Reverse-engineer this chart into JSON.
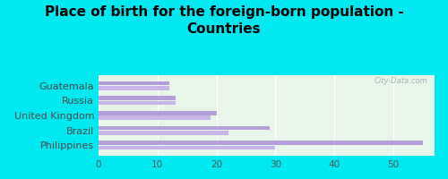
{
  "title": "Place of birth for the foreign-born population -\nCountries",
  "categories": [
    "Guatemala",
    "Russia",
    "United Kingdom",
    "Brazil",
    "Philippines"
  ],
  "values1": [
    55,
    29,
    20,
    13,
    12
  ],
  "values2": [
    30,
    22,
    19,
    13,
    12
  ],
  "bar_color1": "#b39ddb",
  "bar_color2": "#c8b4e8",
  "background_outer": "#00e8f0",
  "background_plot": "#e8f5e9",
  "xlim": [
    0,
    57
  ],
  "xticks": [
    0,
    10,
    20,
    30,
    40,
    50
  ],
  "title_fontsize": 11,
  "label_fontsize": 8,
  "tick_fontsize": 7.5
}
